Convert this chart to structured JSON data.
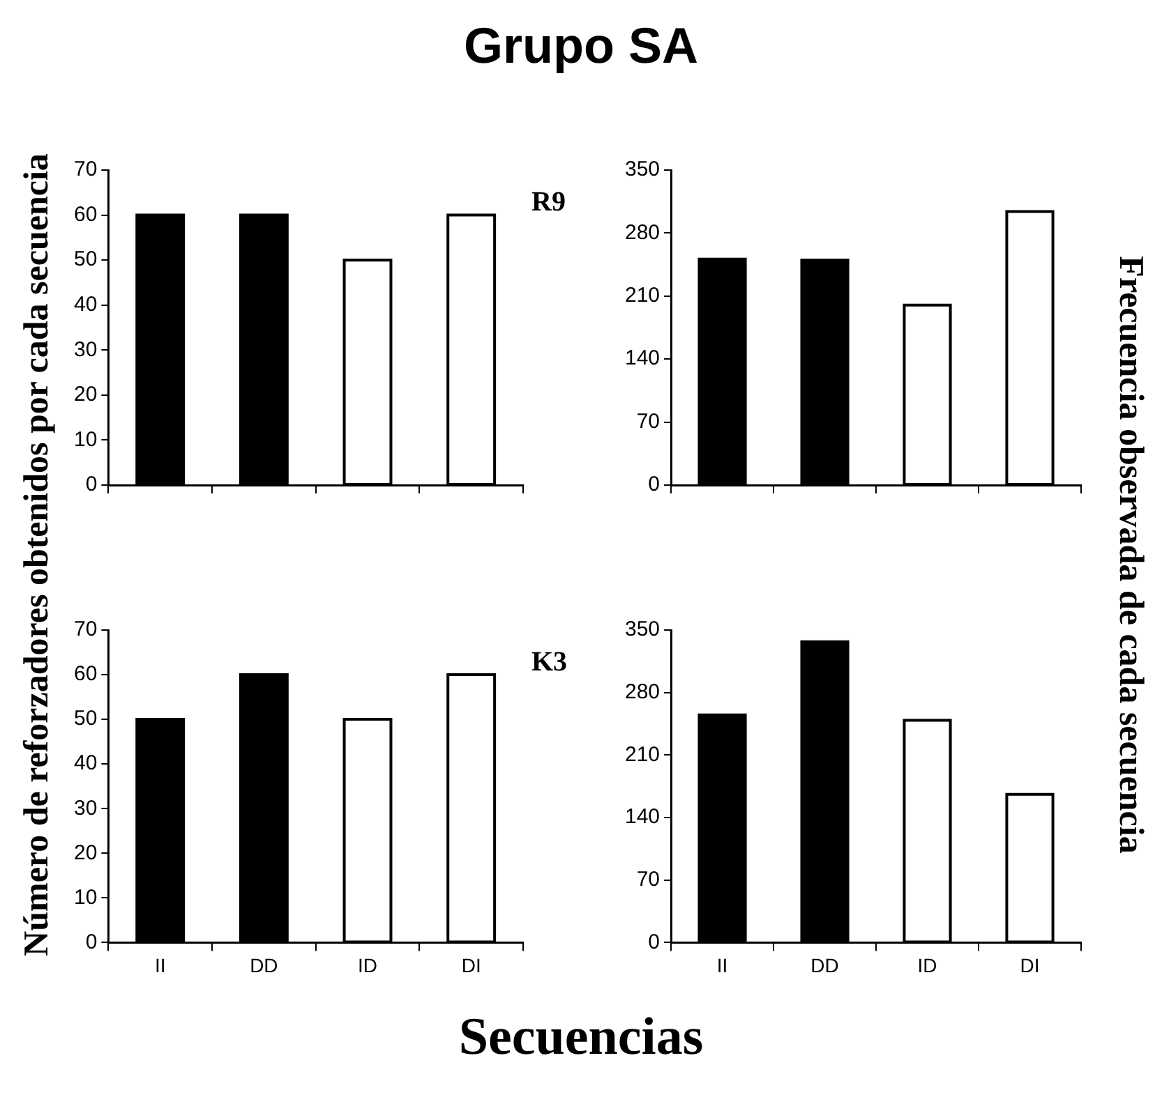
{
  "chart_data": [
    {
      "type": "bar",
      "title": "Grupo SA",
      "ylabel": "Número de reforzadores obtenidos por cada secuencia",
      "annotations": [
        "R9"
      ],
      "categories": [
        null,
        null,
        null,
        null
      ],
      "values": [
        60,
        60,
        50,
        60
      ],
      "colors": [
        "#000000",
        "#000000",
        "#ffffff",
        "#ffffff"
      ],
      "ylim": [
        0,
        70
      ],
      "yticks": [
        0,
        10,
        20,
        30,
        40,
        50,
        60,
        70
      ],
      "grid": false,
      "legend": false,
      "tick_labels": "y"
    },
    {
      "type": "bar",
      "ylabel": "Frecuencia observada de cada secuencia",
      "categories": [
        null,
        null,
        null,
        null
      ],
      "values": [
        251,
        250,
        200,
        304
      ],
      "colors": [
        "#000000",
        "#000000",
        "#ffffff",
        "#ffffff"
      ],
      "ylim": [
        0,
        350
      ],
      "yticks": [
        0,
        70,
        140,
        210,
        280,
        350
      ],
      "grid": false,
      "legend": false,
      "tick_labels": "y"
    },
    {
      "type": "bar",
      "xlabel": "Secuencias",
      "annotations": [
        "K3"
      ],
      "categories": [
        "II",
        "DD",
        "ID",
        "DI"
      ],
      "values": [
        50,
        60,
        50,
        60
      ],
      "colors": [
        "#000000",
        "#000000",
        "#ffffff",
        "#ffffff"
      ],
      "ylim": [
        0,
        70
      ],
      "yticks": [
        0,
        10,
        20,
        30,
        40,
        50,
        60,
        70
      ],
      "grid": false,
      "legend": false
    },
    {
      "type": "bar",
      "categories": [
        "II",
        "DD",
        "ID",
        "DI"
      ],
      "values": [
        255,
        337,
        249,
        166
      ],
      "colors": [
        "#000000",
        "#000000",
        "#ffffff",
        "#ffffff"
      ],
      "ylim": [
        0,
        350
      ],
      "yticks": [
        0,
        70,
        140,
        210,
        280,
        350
      ],
      "grid": false,
      "legend": false
    }
  ]
}
